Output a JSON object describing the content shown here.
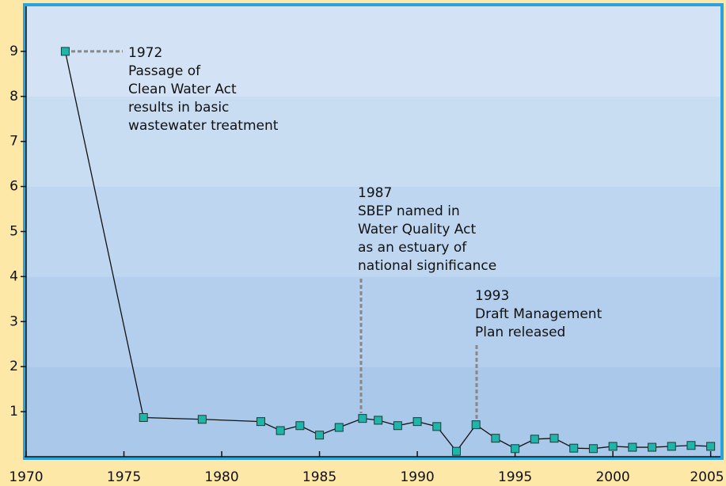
{
  "chart_data": {
    "type": "line",
    "x": [
      1972,
      1976,
      1979,
      1982,
      1983,
      1984,
      1985,
      1986,
      1987.2,
      1988,
      1989,
      1990,
      1991,
      1992,
      1993,
      1994,
      1995,
      1996,
      1997,
      1998,
      1999,
      2000,
      2001,
      2002,
      2003,
      2004,
      2005
    ],
    "series": [
      {
        "color": "#1fb5a8",
        "values": [
          9,
          0.87,
          0.83,
          0.78,
          0.58,
          0.69,
          0.48,
          0.65,
          0.85,
          0.81,
          0.69,
          0.78,
          0.67,
          0.12,
          0.71,
          0.41,
          0.18,
          0.39,
          0.41,
          0.19,
          0.18,
          0.23,
          0.21,
          0.21,
          0.23,
          0.25,
          0.23
        ]
      }
    ],
    "xlim": [
      1970,
      2005.5
    ],
    "xticks": [
      1970,
      1975,
      1980,
      1985,
      1990,
      1995,
      2000,
      2005
    ],
    "ylim": [
      0,
      10
    ],
    "yticks": [
      1,
      2,
      3,
      4,
      5,
      6,
      7,
      8,
      9
    ],
    "annotations": [
      {
        "lines": [
          "1972",
          "Passage of",
          "Clean Water Act",
          "results in basic",
          "wastewater treatment"
        ]
      },
      {
        "lines": [
          "1987",
          "SBEP named in",
          "Water Quality Act",
          "as an estuary of",
          "national significance"
        ]
      },
      {
        "lines": [
          "1993",
          "Draft Management",
          "Plan released"
        ]
      }
    ]
  }
}
